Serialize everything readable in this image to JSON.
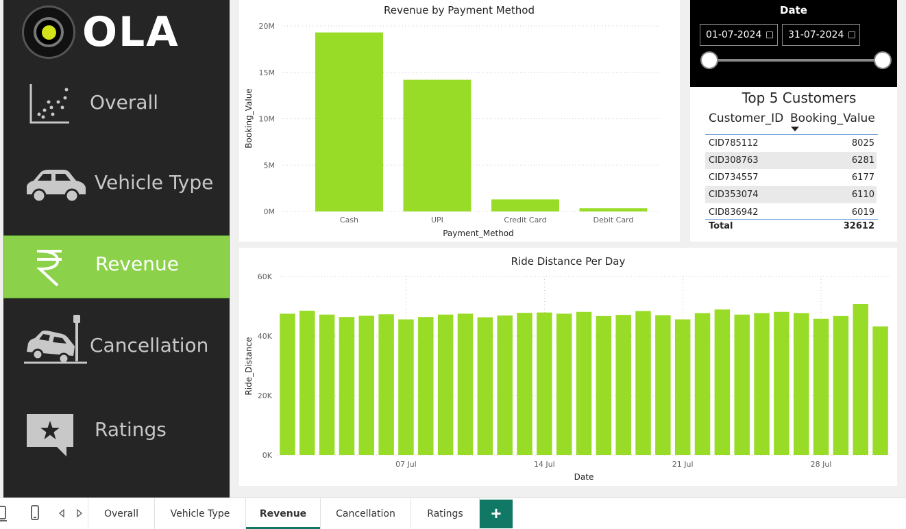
{
  "brand": {
    "name": "OLA",
    "ball_color": "#d4e21a"
  },
  "sidebar": {
    "items": [
      {
        "label": "Overall",
        "icon": "scatter-chart-icon"
      },
      {
        "label": "Vehicle Type",
        "icon": "car-icon"
      },
      {
        "label": "Revenue",
        "icon": "rupee-icon",
        "active": true
      },
      {
        "label": "Cancellation",
        "icon": "car-crash-icon"
      },
      {
        "label": "Ratings",
        "icon": "star-speech-icon"
      }
    ],
    "active_color": "#8bd14a"
  },
  "date_slicer": {
    "title": "Date",
    "start": "01-07-2024",
    "end": "31-07-2024"
  },
  "top_customers": {
    "title": "Top 5 Customers",
    "columns": [
      "Customer_ID",
      "Booking_Value"
    ],
    "rows": [
      {
        "id": "CID785112",
        "value": "8025"
      },
      {
        "id": "CID308763",
        "value": "6281"
      },
      {
        "id": "CID734557",
        "value": "6177"
      },
      {
        "id": "CID353074",
        "value": "6110"
      },
      {
        "id": "CID836942",
        "value": "6019"
      }
    ],
    "total_label": "Total",
    "total_value": "32612"
  },
  "chart_data": [
    {
      "type": "bar",
      "title": "Revenue by Payment Method",
      "xlabel": "Payment_Method",
      "ylabel": "Booking_Value",
      "categories": [
        "Cash",
        "UPI",
        "Credit Card",
        "Debit Card"
      ],
      "values": [
        19300000,
        14200000,
        1300000,
        350000
      ],
      "ylim": [
        0,
        20000000
      ],
      "yticks": [
        {
          "v": 0,
          "label": "0M"
        },
        {
          "v": 5000000,
          "label": "5M"
        },
        {
          "v": 10000000,
          "label": "10M"
        },
        {
          "v": 15000000,
          "label": "15M"
        },
        {
          "v": 20000000,
          "label": "20M"
        }
      ],
      "color": "#99dc27",
      "grid": true
    },
    {
      "type": "bar",
      "title": "Ride Distance Per Day",
      "xlabel": "Date",
      "ylabel": "Ride_Distance",
      "x": [
        "2024-07-01",
        "2024-07-02",
        "2024-07-03",
        "2024-07-04",
        "2024-07-05",
        "2024-07-06",
        "2024-07-07",
        "2024-07-08",
        "2024-07-09",
        "2024-07-10",
        "2024-07-11",
        "2024-07-12",
        "2024-07-13",
        "2024-07-14",
        "2024-07-15",
        "2024-07-16",
        "2024-07-17",
        "2024-07-18",
        "2024-07-19",
        "2024-07-20",
        "2024-07-21",
        "2024-07-22",
        "2024-07-23",
        "2024-07-24",
        "2024-07-25",
        "2024-07-26",
        "2024-07-27",
        "2024-07-28",
        "2024-07-29",
        "2024-07-30",
        "2024-07-31"
      ],
      "values": [
        47500,
        48500,
        47200,
        46400,
        46800,
        47300,
        45600,
        46400,
        47200,
        47500,
        46300,
        46900,
        47800,
        47900,
        47500,
        48100,
        46700,
        47100,
        48400,
        47000,
        45600,
        47700,
        48900,
        47200,
        47700,
        48100,
        47700,
        45800,
        46700,
        50800,
        43200
      ],
      "xticks": [
        {
          "i": 6,
          "label": "07 Jul"
        },
        {
          "i": 13,
          "label": "14 Jul"
        },
        {
          "i": 20,
          "label": "21 Jul"
        },
        {
          "i": 27,
          "label": "28 Jul"
        }
      ],
      "ylim": [
        0,
        60000
      ],
      "yticks": [
        {
          "v": 0,
          "label": "0K"
        },
        {
          "v": 20000,
          "label": "20K"
        },
        {
          "v": 40000,
          "label": "40K"
        },
        {
          "v": 60000,
          "label": "60K"
        }
      ],
      "color": "#99dc27",
      "grid": true
    }
  ],
  "tabs": {
    "items": [
      "Overall",
      "Vehicle Type",
      "Revenue",
      "Cancellation",
      "Ratings"
    ],
    "active": "Revenue",
    "add_label": "+",
    "accent": "#117865"
  }
}
